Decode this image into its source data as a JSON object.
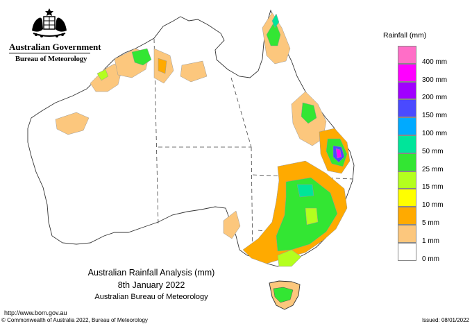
{
  "header": {
    "government": "Australian Government",
    "bureau": "Bureau of Meteorology"
  },
  "map": {
    "title": "Australian Rainfall Analysis (mm)",
    "date": "8th January 2022",
    "agency": "Australian Bureau of Meteorology"
  },
  "legend": {
    "title": "Rainfall (mm)",
    "bins": [
      {
        "label": "400 mm",
        "color": "#ff6ec7"
      },
      {
        "label": "300 mm",
        "color": "#ff00ff"
      },
      {
        "label": "200 mm",
        "color": "#a000ff"
      },
      {
        "label": "150 mm",
        "color": "#4a4aff"
      },
      {
        "label": "100 mm",
        "color": "#00aaff"
      },
      {
        "label": "50 mm",
        "color": "#00e59a"
      },
      {
        "label": "25 mm",
        "color": "#33e633"
      },
      {
        "label": "15 mm",
        "color": "#b4ff1e"
      },
      {
        "label": "10 mm",
        "color": "#ffff00"
      },
      {
        "label": "5 mm",
        "color": "#ffaa00"
      },
      {
        "label": "1 mm",
        "color": "#fcc77d"
      },
      {
        "label": "0 mm",
        "color": "#ffffff"
      }
    ]
  },
  "footer": {
    "url": "http://www.bom.gov.au",
    "copyright": "© Commonwealth of Australia 2022, Bureau of Meteorology",
    "issued": "Issued: 08/01/2022"
  },
  "icons": {
    "crest": "commonwealth-coat-of-arms-icon"
  }
}
